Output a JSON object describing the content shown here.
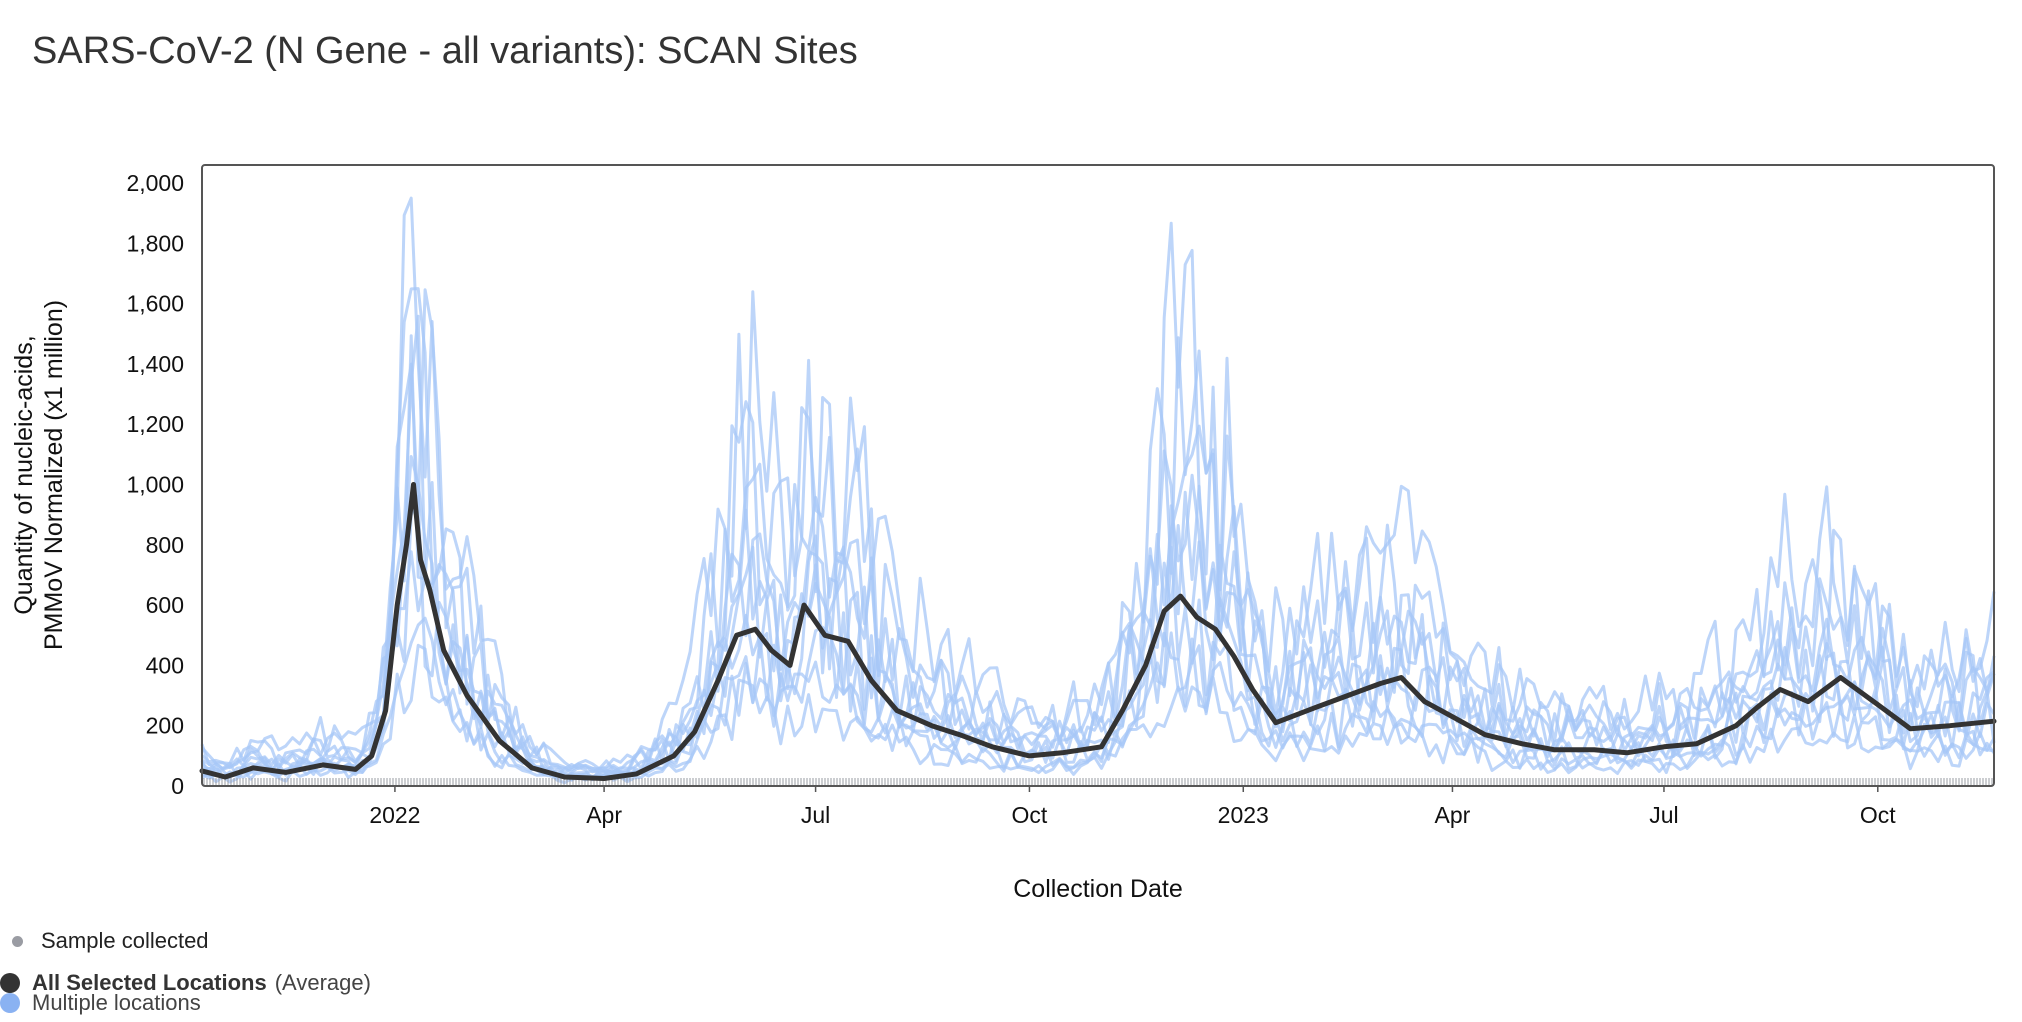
{
  "title": "SARS-CoV-2 (N Gene - all variants): SCAN Sites",
  "legend": {
    "sample_label": "Sample collected",
    "average_label": "All Selected Locations",
    "average_sub": "(Average)",
    "multiple_label": "Multiple locations"
  },
  "colors": {
    "average": "#333333",
    "sites": "#a7c7f7",
    "sample_dot": "#9a9ca3",
    "multiple_dot": "#8ab2f2",
    "frame": "#555555"
  },
  "chart_data": {
    "type": "line",
    "title": "SARS-CoV-2 (N Gene - all variants): SCAN Sites",
    "xlabel": "Collection Date",
    "ylabel_lines": [
      "Quantity of nucleic-acids,",
      "PMMoV Normalized (x1 million)"
    ],
    "x_start": "2021-10-10",
    "x_end": "2023-11-20",
    "ylim": [
      0,
      2000
    ],
    "y_ticks": [
      {
        "value": 0,
        "label": "0"
      },
      {
        "value": 200,
        "label": "200"
      },
      {
        "value": 400,
        "label": "400"
      },
      {
        "value": 600,
        "label": "600"
      },
      {
        "value": 800,
        "label": "800"
      },
      {
        "value": 1000,
        "label": "1,000"
      },
      {
        "value": 1200,
        "label": "1,200"
      },
      {
        "value": 1400,
        "label": "1,400"
      },
      {
        "value": 1600,
        "label": "1,600"
      },
      {
        "value": 1800,
        "label": "1,800"
      },
      {
        "value": 2000,
        "label": "2,000"
      }
    ],
    "x_ticks": [
      {
        "date": "2022-01-01",
        "label": "2022"
      },
      {
        "date": "2022-04-01",
        "label": "Apr"
      },
      {
        "date": "2022-07-01",
        "label": "Jul"
      },
      {
        "date": "2022-10-01",
        "label": "Oct"
      },
      {
        "date": "2023-01-01",
        "label": "2023"
      },
      {
        "date": "2023-04-01",
        "label": "Apr"
      },
      {
        "date": "2023-07-01",
        "label": "Jul"
      },
      {
        "date": "2023-10-01",
        "label": "Oct"
      }
    ],
    "series": [
      {
        "name": "All Selected Locations (Average)",
        "x": [
          "2021-10-10",
          "2021-10-20",
          "2021-11-01",
          "2021-11-15",
          "2021-12-01",
          "2021-12-15",
          "2021-12-22",
          "2021-12-28",
          "2022-01-02",
          "2022-01-06",
          "2022-01-09",
          "2022-01-12",
          "2022-01-16",
          "2022-01-22",
          "2022-02-01",
          "2022-02-15",
          "2022-03-01",
          "2022-03-15",
          "2022-04-01",
          "2022-04-15",
          "2022-05-01",
          "2022-05-10",
          "2022-05-20",
          "2022-05-28",
          "2022-06-05",
          "2022-06-12",
          "2022-06-20",
          "2022-06-26",
          "2022-07-05",
          "2022-07-15",
          "2022-07-25",
          "2022-08-05",
          "2022-08-20",
          "2022-09-01",
          "2022-09-15",
          "2022-10-01",
          "2022-10-15",
          "2022-11-01",
          "2022-11-10",
          "2022-11-20",
          "2022-11-28",
          "2022-12-05",
          "2022-12-12",
          "2022-12-20",
          "2022-12-28",
          "2023-01-05",
          "2023-01-15",
          "2023-02-01",
          "2023-02-15",
          "2023-03-01",
          "2023-03-10",
          "2023-03-20",
          "2023-04-01",
          "2023-04-15",
          "2023-05-01",
          "2023-05-15",
          "2023-06-01",
          "2023-06-15",
          "2023-07-01",
          "2023-07-15",
          "2023-08-01",
          "2023-08-10",
          "2023-08-20",
          "2023-09-01",
          "2023-09-15",
          "2023-10-01",
          "2023-10-15",
          "2023-11-01",
          "2023-11-20"
        ],
        "values": [
          50,
          30,
          60,
          45,
          70,
          55,
          100,
          250,
          600,
          800,
          1000,
          750,
          650,
          450,
          300,
          150,
          60,
          30,
          25,
          40,
          100,
          180,
          350,
          500,
          520,
          450,
          400,
          600,
          500,
          480,
          350,
          250,
          200,
          170,
          130,
          100,
          110,
          130,
          250,
          400,
          580,
          630,
          560,
          520,
          430,
          320,
          210,
          260,
          300,
          340,
          360,
          280,
          230,
          170,
          140,
          120,
          120,
          110,
          130,
          140,
          200,
          260,
          320,
          280,
          360,
          270,
          190,
          200,
          215
        ]
      }
    ],
    "sites_note": "Multiple locations"
  }
}
